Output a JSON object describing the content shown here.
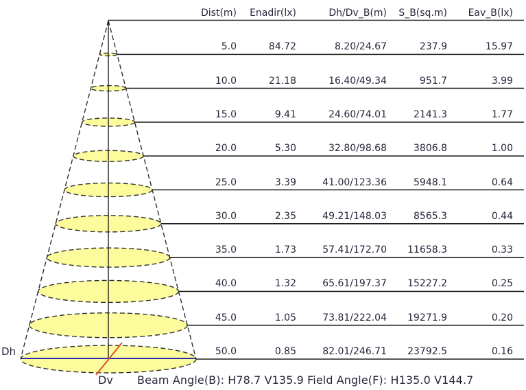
{
  "table": {
    "headers": [
      "Dist(m)",
      "Enadir(lx)",
      "Dh/Dv_B(m)",
      "S_B(sq.m)",
      "Eav_B(lx)"
    ],
    "rows": [
      [
        "5.0",
        "84.72",
        "8.20/24.67",
        "237.9",
        "15.97"
      ],
      [
        "10.0",
        "21.18",
        "16.40/49.34",
        "951.7",
        "3.99"
      ],
      [
        "15.0",
        "9.41",
        "24.60/74.01",
        "2141.3",
        "1.77"
      ],
      [
        "20.0",
        "5.30",
        "32.80/98.68",
        "3806.8",
        "1.00"
      ],
      [
        "25.0",
        "3.39",
        "41.00/123.36",
        "5948.1",
        "0.64"
      ],
      [
        "30.0",
        "2.35",
        "49.21/148.03",
        "8565.3",
        "0.44"
      ],
      [
        "35.0",
        "1.73",
        "57.41/172.70",
        "11658.3",
        "0.33"
      ],
      [
        "40.0",
        "1.32",
        "65.61/197.37",
        "15227.2",
        "0.25"
      ],
      [
        "45.0",
        "1.05",
        "73.81/222.04",
        "19271.9",
        "0.20"
      ],
      [
        "50.0",
        "0.85",
        "82.01/246.71",
        "23792.5",
        "0.16"
      ]
    ]
  },
  "labels": {
    "dh": "Dh",
    "dv": "Dv"
  },
  "footer": {
    "beam_angle": "Beam Angle(B): H78.7 V135.9  Field Angle(F): H135.0 V144.7"
  },
  "colors": {
    "cone_fill": "#FCFC9C",
    "outline": "#2E2E2E",
    "line": "#1F1F1F",
    "dh_axis": "#2A2AB4",
    "dv_axis": "#E0512B",
    "text": "#26263A"
  },
  "chart_data": {
    "type": "table",
    "title": "Luminaire light cone diagram with photometric table",
    "columns": [
      "Dist(m)",
      "Enadir(lx)",
      "Dh/Dv_B(m)",
      "S_B(sq.m)",
      "Eav_B(lx)"
    ],
    "rows": [
      [
        5.0,
        84.72,
        "8.20/24.67",
        237.9,
        15.97
      ],
      [
        10.0,
        21.18,
        "16.40/49.34",
        951.7,
        3.99
      ],
      [
        15.0,
        9.41,
        "24.60/74.01",
        2141.3,
        1.77
      ],
      [
        20.0,
        5.3,
        "32.80/98.68",
        3806.8,
        1.0
      ],
      [
        25.0,
        3.39,
        "41.00/123.36",
        5948.1,
        0.64
      ],
      [
        30.0,
        2.35,
        "49.21/148.03",
        8565.3,
        0.44
      ],
      [
        35.0,
        1.73,
        "57.41/172.70",
        11658.3,
        0.33
      ],
      [
        40.0,
        1.32,
        "65.61/197.37",
        15227.2,
        0.25
      ],
      [
        45.0,
        1.05,
        "73.81/222.04",
        19271.9,
        0.2
      ],
      [
        50.0,
        0.85,
        "82.01/246.71",
        23792.5,
        0.16
      ]
    ],
    "diagram": {
      "type": "light-cone",
      "distances_m": [
        5,
        10,
        15,
        20,
        25,
        30,
        35,
        40,
        45,
        50
      ],
      "axes": {
        "horizontal": "Dh",
        "vertical_beam": "Dv"
      },
      "beam_angle_B": {
        "H": 78.7,
        "V": 135.9
      },
      "field_angle_F": {
        "H": 135.0,
        "V": 144.7
      }
    },
    "layout": {
      "legend_position": "none",
      "grid": "row-rules",
      "cone_apex_top": true
    }
  }
}
